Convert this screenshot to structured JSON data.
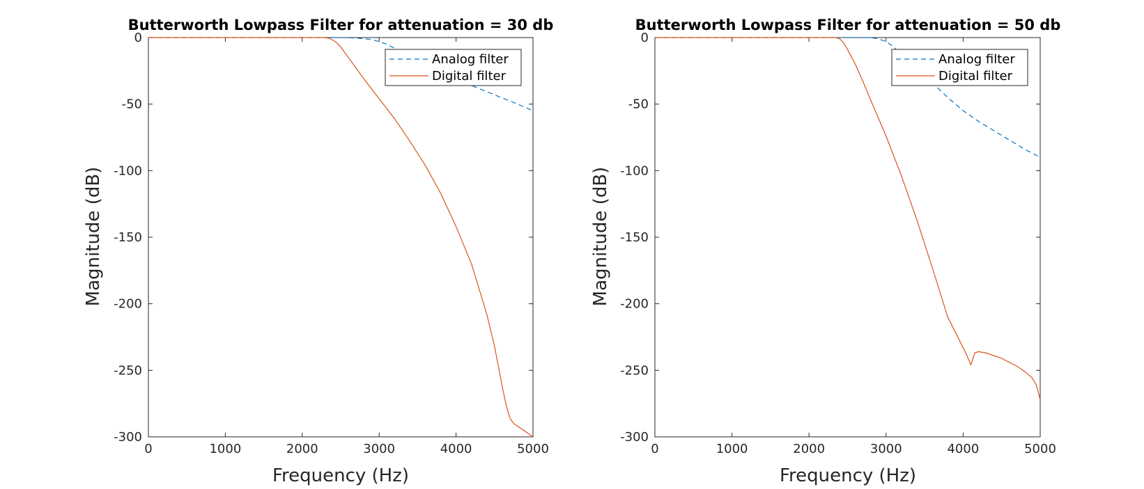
{
  "figure": {
    "background": "#ffffff",
    "colors": {
      "analog": "#0072BD",
      "digital": "#D95319",
      "axis": "#262626"
    }
  },
  "chart_data": [
    {
      "type": "line",
      "title": "Butterworth Lowpass Filter for attenuation = 30 db",
      "xlabel": "Frequency (Hz)",
      "ylabel": "Magnitude (dB)",
      "xlim": [
        0,
        5000
      ],
      "ylim": [
        -300,
        0
      ],
      "xticks": [
        0,
        1000,
        2000,
        3000,
        4000,
        5000
      ],
      "yticks": [
        -300,
        -250,
        -200,
        -150,
        -100,
        -50,
        0
      ],
      "xtick_labels": [
        "0",
        "1000",
        "2000",
        "3000",
        "4000",
        "5000"
      ],
      "ytick_labels": [
        "-300",
        "-250",
        "-200",
        "-150",
        "-100",
        "-50",
        "0"
      ],
      "grid": false,
      "legend_position": "top-right",
      "series": [
        {
          "name": "Analog filter",
          "style": "dashed",
          "color": "#0072BD",
          "x": [
            0,
            2000,
            2300,
            2500,
            2700,
            2900,
            3000,
            3100,
            3300,
            3500,
            3700,
            4000,
            4200,
            4500,
            4800,
            5000
          ],
          "y": [
            0,
            0,
            0,
            0,
            -0.3,
            -1.5,
            -3,
            -5,
            -11,
            -17,
            -23,
            -31,
            -36,
            -43,
            -50,
            -55
          ]
        },
        {
          "name": "Digital filter",
          "style": "solid",
          "color": "#D95319",
          "x": [
            0,
            2200,
            2300,
            2350,
            2400,
            2450,
            2500,
            2600,
            2700,
            2800,
            3000,
            3200,
            3400,
            3600,
            3800,
            4000,
            4200,
            4400,
            4500,
            4600,
            4650,
            4700,
            4750,
            4800,
            4900,
            5000
          ],
          "y": [
            0,
            0,
            0,
            -0.5,
            -2,
            -4,
            -7,
            -15,
            -23,
            -31,
            -46,
            -61,
            -78,
            -96,
            -117,
            -142,
            -170,
            -208,
            -232,
            -262,
            -276,
            -286,
            -290,
            -292,
            -296,
            -300
          ]
        }
      ]
    },
    {
      "type": "line",
      "title": "Butterworth Lowpass Filter for attenuation = 50 db",
      "xlabel": "Frequency (Hz)",
      "ylabel": "Magnitude (dB)",
      "xlim": [
        0,
        5000
      ],
      "ylim": [
        -300,
        0
      ],
      "xticks": [
        0,
        1000,
        2000,
        3000,
        4000,
        5000
      ],
      "yticks": [
        -300,
        -250,
        -200,
        -150,
        -100,
        -50,
        0
      ],
      "xtick_labels": [
        "0",
        "1000",
        "2000",
        "3000",
        "4000",
        "5000"
      ],
      "ytick_labels": [
        "-300",
        "-250",
        "-200",
        "-150",
        "-100",
        "-50",
        "0"
      ],
      "grid": false,
      "legend_position": "top-right",
      "series": [
        {
          "name": "Analog filter",
          "style": "dashed",
          "color": "#0072BD",
          "x": [
            0,
            2000,
            2500,
            2800,
            2900,
            3000,
            3100,
            3200,
            3400,
            3600,
            3800,
            4000,
            4200,
            4400,
            4600,
            4800,
            5000
          ],
          "y": [
            0,
            0,
            0,
            0,
            -1,
            -3,
            -7,
            -13,
            -23,
            -34,
            -45,
            -55,
            -63,
            -70,
            -77,
            -84,
            -90
          ]
        },
        {
          "name": "Digital filter",
          "style": "solid",
          "color": "#D95319",
          "x": [
            0,
            2200,
            2300,
            2350,
            2400,
            2450,
            2500,
            2600,
            2700,
            2800,
            3000,
            3200,
            3400,
            3600,
            3800,
            4000,
            4050,
            4100,
            4150,
            4200,
            4300,
            4500,
            4700,
            4800,
            4900,
            4950,
            5000
          ],
          "y": [
            0,
            0,
            0,
            0,
            -1,
            -4,
            -9,
            -20,
            -33,
            -47,
            -74,
            -104,
            -137,
            -173,
            -210,
            -233,
            -239,
            -246,
            -237,
            -236,
            -237,
            -241,
            -247,
            -251,
            -256,
            -261,
            -272
          ]
        }
      ]
    }
  ]
}
